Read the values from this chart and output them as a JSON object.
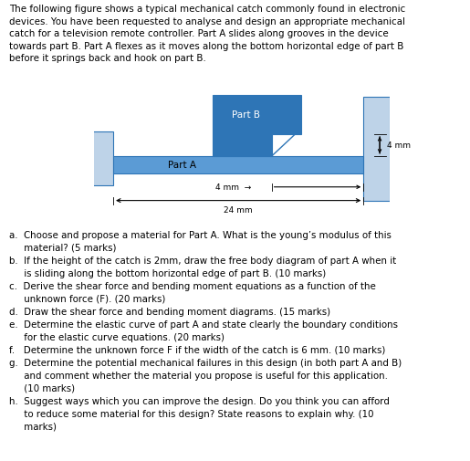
{
  "title_text": "The following figure shows a typical mechanical catch commonly found in electronic\ndevices. You have been requested to analyse and design an appropriate mechanical\ncatch for a television remote controller. Part A slides along grooves in the device\ntowards part B. Part A flexes as it moves along the bottom horizontal edge of part B\nbefore it springs back and hook on part B.",
  "part_a_label": "Part A",
  "part_b_label": "Part B",
  "dim_4mm_horiz": "4 mm",
  "dim_4mm_vert": "4 mm",
  "dim_24mm": "24 mm",
  "q_a": "a.  Choose and propose a material for Part A. What is the young’s modulus of this\n     material? (5 marks)",
  "q_b": "b.  If the height of the catch is 2mm, draw the free body diagram of part A when it\n     is sliding along the bottom horizontal edge of part B. (10 marks)",
  "q_c": "c.  Derive the shear force and bending moment equations as a function of the\n     unknown force (F). (20 marks)",
  "q_d": "d.  Draw the shear force and bending moment diagrams. (15 marks)",
  "q_e": "e.  Determine the elastic curve of part A and state clearly the boundary conditions\n     for the elastic curve equations. (20 marks)",
  "q_f": "f.   Determine the unknown force F if the width of the catch is 6 mm. (10 marks)",
  "q_g": "g.  Determine the potential mechanical failures in this design (in both part A and B)\n     and comment whether the material you propose is useful for this application.\n     (10 marks)",
  "q_h": "h.  Suggest ways which you can improve the design. Do you think you can afford\n     to reduce some material for this design? State reasons to explain why. (10\n     marks)",
  "part_a_color": "#5b9bd5",
  "part_b_color": "#2e75b6",
  "wall_color": "#bed3e8",
  "bg_color": "#ffffff",
  "text_color": "#000000",
  "line_color": "#2e75b6",
  "arrow_color": "#000000"
}
